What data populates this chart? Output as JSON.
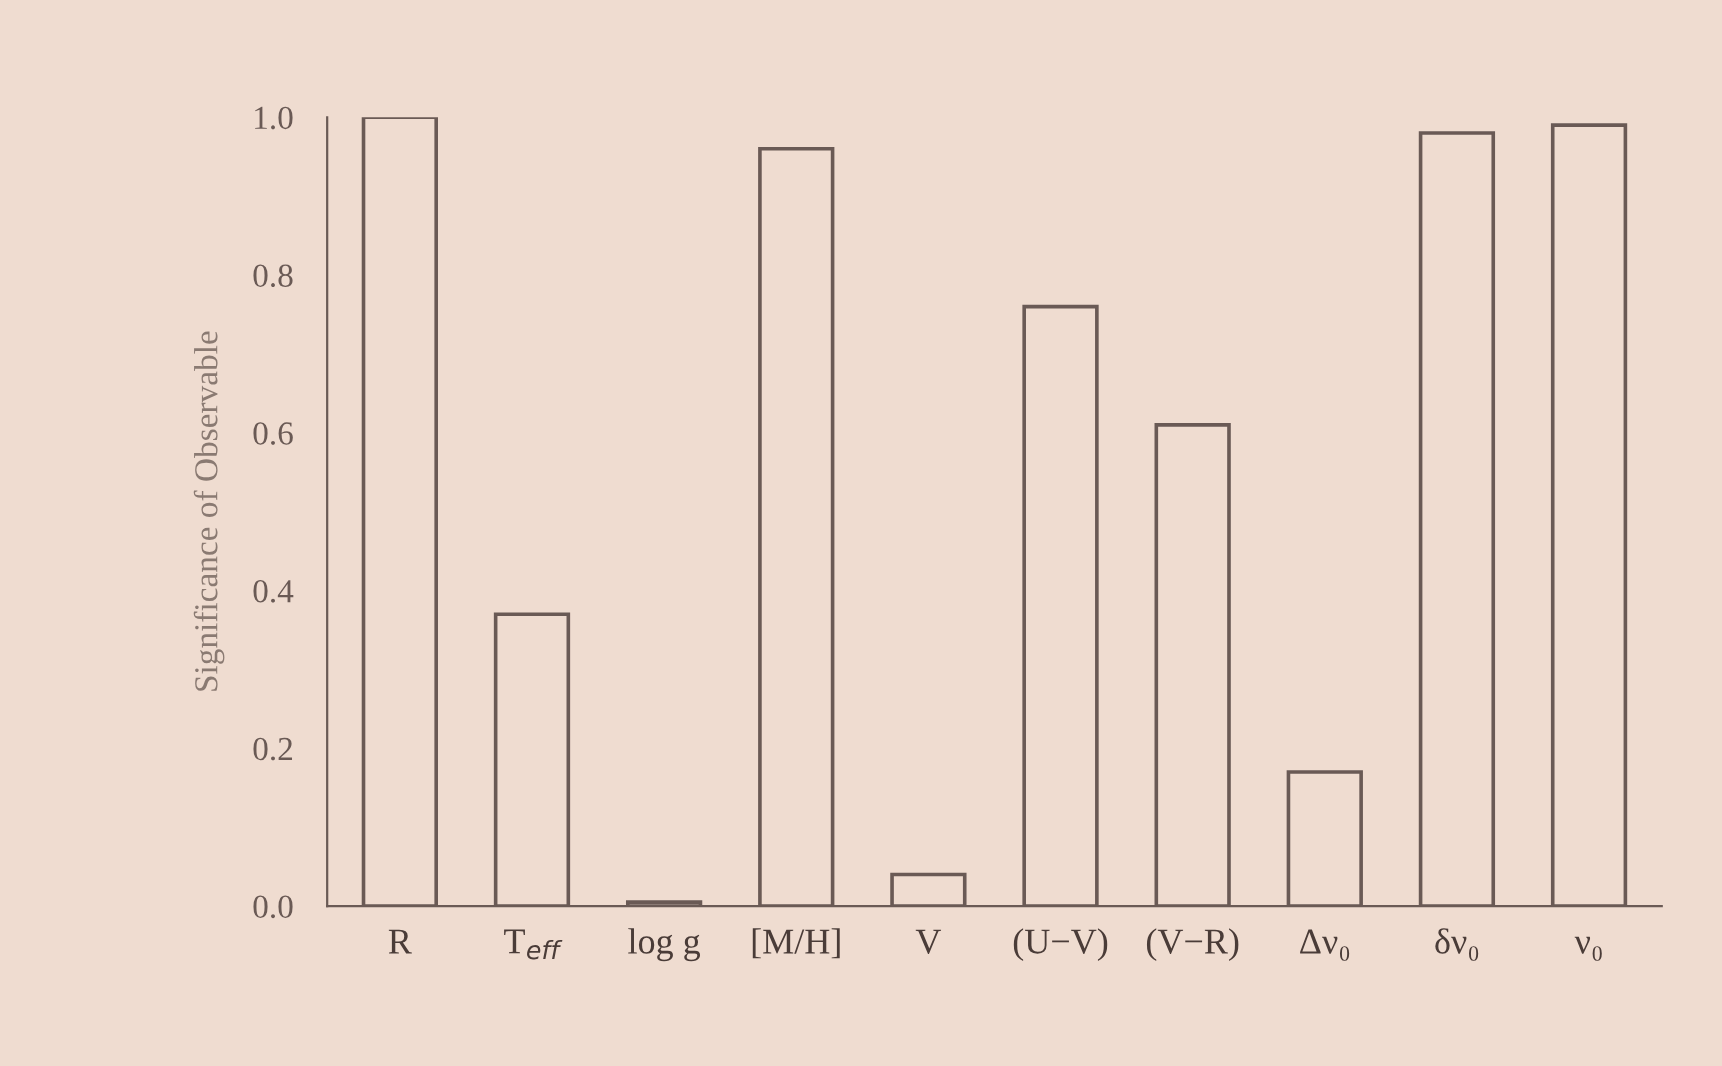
{
  "chart_data": {
    "type": "bar",
    "categories": [
      "R",
      "T$_{eff}$",
      "log g",
      "[M/H]",
      "V",
      "(U−V)",
      "(V−R)",
      "Δν₀",
      "δν₀",
      "ν₀"
    ],
    "values": [
      1.0,
      0.37,
      0.005,
      0.96,
      0.04,
      0.76,
      0.61,
      0.17,
      0.98,
      0.99
    ],
    "color": "#6a5a55",
    "ylabel": "Significance of Observable",
    "ylim": [
      0,
      1.0
    ],
    "yticks": [
      {
        "value": 0,
        "label": "0.0"
      },
      0.2,
      0.4,
      0.6,
      0.8,
      {
        "value": 1,
        "label": "1.0"
      }
    ],
    "grid": false
  }
}
